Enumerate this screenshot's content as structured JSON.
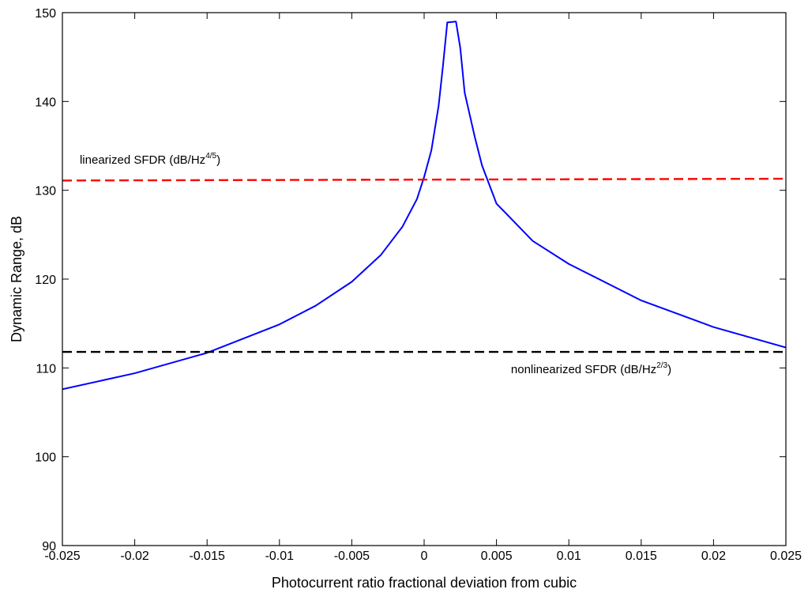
{
  "chart_data": {
    "type": "line",
    "xlabel": "Photocurrent ratio fractional deviation from cubic",
    "ylabel": "Dynamic Range, dB",
    "xlim": [
      -0.025,
      0.025
    ],
    "ylim": [
      90,
      150
    ],
    "xticks": [
      -0.025,
      -0.02,
      -0.015,
      -0.01,
      -0.005,
      0,
      0.005,
      0.01,
      0.015,
      0.02,
      0.025
    ],
    "xtick_labels": [
      "-0.025",
      "-0.02",
      "-0.015",
      "-0.01",
      "-0.005",
      "0",
      "0.005",
      "0.01",
      "0.015",
      "0.02",
      "0.025"
    ],
    "yticks": [
      90,
      100,
      110,
      120,
      130,
      140,
      150
    ],
    "ytick_labels": [
      "90",
      "100",
      "110",
      "120",
      "130",
      "140",
      "150"
    ],
    "grid": false,
    "series": [
      {
        "color": "#0000ff",
        "style": "solid",
        "x": [
          -0.025,
          -0.02,
          -0.015,
          -0.01,
          -0.0075,
          -0.005,
          -0.003,
          -0.0015,
          -0.0005,
          0,
          0.0005,
          0.001,
          0.0013,
          0.0016,
          0.0022,
          0.0025,
          0.0028,
          0.0035,
          0.004,
          0.005,
          0.0075,
          0.01,
          0.015,
          0.02,
          0.025
        ],
        "y": [
          107.6,
          109.4,
          111.7,
          114.9,
          117.0,
          119.7,
          122.7,
          125.9,
          129.0,
          131.5,
          134.5,
          139.5,
          144.0,
          148.9,
          149.0,
          146.0,
          141.0,
          136.0,
          132.8,
          128.5,
          124.3,
          121.7,
          117.6,
          114.6,
          112.3
        ]
      },
      {
        "color": "#ff0000",
        "style": "dashed",
        "x": [
          -0.025,
          0.025
        ],
        "y": [
          131.1,
          131.3
        ]
      },
      {
        "color": "#000000",
        "style": "dashed",
        "x": [
          -0.025,
          0.025
        ],
        "y": [
          111.8,
          111.8
        ]
      }
    ],
    "annotations": [
      {
        "text": "linearized SFDR (dB/Hz",
        "sup": "4/5",
        "close": ")",
        "x": -0.0238,
        "y": 133.0
      },
      {
        "text": "nonlinearized SFDR (dB/Hz",
        "sup": "2/3",
        "close": ")",
        "x": 0.006,
        "y": 109.4
      }
    ]
  }
}
